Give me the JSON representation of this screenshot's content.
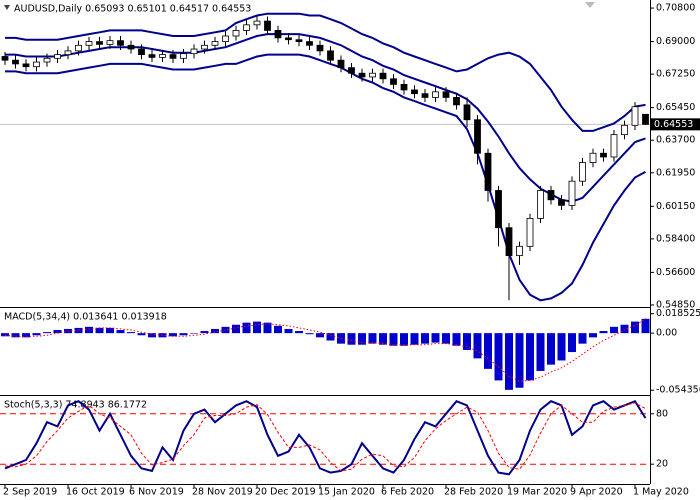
{
  "chart_data": [
    {
      "type": "candlestick",
      "title": "AUDUSD,Daily 0.65093 0.65101 0.64517 0.64553",
      "categories": [
        "2 Sep 2019",
        null,
        null,
        null,
        null,
        null,
        "16 Oct 2019",
        null,
        null,
        null,
        null,
        null,
        "6 Nov 2019",
        null,
        null,
        null,
        null,
        null,
        "28 Nov 2019",
        null,
        null,
        null,
        null,
        null,
        "20 Dec 2019",
        null,
        null,
        null,
        null,
        null,
        "15 Jan 2020",
        null,
        null,
        null,
        null,
        null,
        "6 Feb 2020",
        null,
        null,
        null,
        null,
        null,
        "28 Feb 2020",
        null,
        null,
        null,
        null,
        null,
        "19 Mar 2020",
        null,
        null,
        null,
        null,
        null,
        "9 Apr 2020",
        null,
        null,
        null,
        null,
        null,
        "1 May 2020",
        null
      ],
      "open": [
        0.682,
        0.68,
        0.678,
        0.6765,
        0.679,
        0.681,
        0.683,
        0.685,
        0.688,
        0.69,
        0.6885,
        0.6905,
        0.688,
        0.686,
        0.683,
        0.6815,
        0.683,
        0.681,
        0.6835,
        0.686,
        0.688,
        0.69,
        0.693,
        0.696,
        0.699,
        0.701,
        0.696,
        0.692,
        0.691,
        0.69,
        0.688,
        0.685,
        0.68,
        0.676,
        0.673,
        0.671,
        0.673,
        0.67,
        0.667,
        0.664,
        0.662,
        0.66,
        0.663,
        0.66,
        0.656,
        0.648,
        0.63,
        0.61,
        0.59,
        0.575,
        0.58,
        0.595,
        0.61,
        0.605,
        0.602,
        0.615,
        0.625,
        0.63,
        0.628,
        0.64,
        0.645,
        0.65093
      ],
      "high": [
        0.6845,
        0.6825,
        0.6805,
        0.6815,
        0.6835,
        0.6855,
        0.6875,
        0.6905,
        0.6925,
        0.6925,
        0.693,
        0.693,
        0.6905,
        0.6885,
        0.6855,
        0.6855,
        0.6855,
        0.686,
        0.6885,
        0.6905,
        0.6925,
        0.6955,
        0.6985,
        0.7015,
        0.7035,
        0.7035,
        0.6985,
        0.6945,
        0.6935,
        0.6925,
        0.6905,
        0.6875,
        0.6825,
        0.6785,
        0.6755,
        0.6755,
        0.6755,
        0.6725,
        0.6695,
        0.6665,
        0.6645,
        0.6655,
        0.6655,
        0.6625,
        0.66,
        0.6505,
        0.6325,
        0.6125,
        0.5925,
        0.5825,
        0.5975,
        0.6125,
        0.6125,
        0.6075,
        0.6175,
        0.6275,
        0.6325,
        0.6325,
        0.6425,
        0.6475,
        0.6575,
        0.65101
      ],
      "low": [
        0.6775,
        0.6755,
        0.674,
        0.674,
        0.6765,
        0.6785,
        0.6805,
        0.6825,
        0.6855,
        0.686,
        0.686,
        0.6855,
        0.6835,
        0.6805,
        0.679,
        0.679,
        0.6785,
        0.6785,
        0.681,
        0.6835,
        0.6855,
        0.6875,
        0.6905,
        0.6935,
        0.6965,
        0.6935,
        0.6895,
        0.6885,
        0.6875,
        0.6855,
        0.6825,
        0.6775,
        0.6735,
        0.6705,
        0.6685,
        0.6685,
        0.6675,
        0.6645,
        0.6615,
        0.6595,
        0.6575,
        0.6575,
        0.6575,
        0.6535,
        0.644,
        0.624,
        0.604,
        0.58,
        0.551,
        0.57,
        0.5775,
        0.5925,
        0.6025,
        0.5995,
        0.5995,
        0.6125,
        0.6225,
        0.6255,
        0.6255,
        0.6375,
        0.6425,
        0.64517
      ],
      "close": [
        0.68,
        0.678,
        0.6765,
        0.679,
        0.681,
        0.683,
        0.685,
        0.688,
        0.69,
        0.6885,
        0.6905,
        0.688,
        0.686,
        0.683,
        0.6815,
        0.683,
        0.681,
        0.6835,
        0.686,
        0.688,
        0.69,
        0.693,
        0.696,
        0.699,
        0.701,
        0.696,
        0.692,
        0.691,
        0.69,
        0.688,
        0.685,
        0.68,
        0.676,
        0.673,
        0.671,
        0.673,
        0.67,
        0.667,
        0.664,
        0.662,
        0.66,
        0.663,
        0.66,
        0.656,
        0.648,
        0.63,
        0.61,
        0.59,
        0.575,
        0.58,
        0.595,
        0.61,
        0.605,
        0.602,
        0.615,
        0.625,
        0.63,
        0.628,
        0.64,
        0.645,
        0.655,
        0.64553
      ],
      "series": [
        {
          "color": "#00008b",
          "values": [
            0.692,
            0.692,
            0.691,
            0.691,
            0.691,
            0.691,
            0.692,
            0.693,
            0.694,
            0.695,
            0.696,
            0.696,
            0.696,
            0.696,
            0.695,
            0.694,
            0.693,
            0.693,
            0.693,
            0.694,
            0.695,
            0.696,
            0.7,
            0.702,
            0.704,
            0.705,
            0.705,
            0.705,
            0.705,
            0.704,
            0.704,
            0.702,
            0.7,
            0.697,
            0.694,
            0.692,
            0.689,
            0.687,
            0.684,
            0.682,
            0.68,
            0.678,
            0.676,
            0.674,
            0.675,
            0.678,
            0.681,
            0.683,
            0.684,
            0.682,
            0.678,
            0.671,
            0.664,
            0.655,
            0.648,
            0.642,
            0.642,
            0.644,
            0.646,
            0.65,
            0.655,
            0.656
          ]
        },
        {
          "color": "#00008b",
          "values": [
            0.683,
            0.683,
            0.682,
            0.682,
            0.682,
            0.682,
            0.683,
            0.684,
            0.685,
            0.686,
            0.687,
            0.687,
            0.687,
            0.687,
            0.686,
            0.685,
            0.684,
            0.684,
            0.684,
            0.685,
            0.686,
            0.687,
            0.689,
            0.691,
            0.693,
            0.694,
            0.694,
            0.694,
            0.694,
            0.693,
            0.692,
            0.69,
            0.688,
            0.685,
            0.682,
            0.68,
            0.677,
            0.675,
            0.672,
            0.67,
            0.668,
            0.666,
            0.664,
            0.662,
            0.659,
            0.654,
            0.647,
            0.639,
            0.63,
            0.622,
            0.616,
            0.611,
            0.608,
            0.605,
            0.604,
            0.606,
            0.612,
            0.618,
            0.624,
            0.63,
            0.636,
            0.638
          ]
        },
        {
          "color": "#00008b",
          "values": [
            0.674,
            0.674,
            0.673,
            0.673,
            0.673,
            0.673,
            0.674,
            0.675,
            0.676,
            0.677,
            0.678,
            0.678,
            0.678,
            0.678,
            0.677,
            0.676,
            0.675,
            0.675,
            0.675,
            0.676,
            0.677,
            0.678,
            0.678,
            0.68,
            0.682,
            0.683,
            0.683,
            0.683,
            0.683,
            0.682,
            0.68,
            0.678,
            0.676,
            0.673,
            0.67,
            0.668,
            0.665,
            0.663,
            0.66,
            0.658,
            0.656,
            0.654,
            0.652,
            0.65,
            0.643,
            0.63,
            0.613,
            0.595,
            0.576,
            0.562,
            0.554,
            0.551,
            0.552,
            0.555,
            0.56,
            0.57,
            0.582,
            0.592,
            0.602,
            0.61,
            0.617,
            0.62
          ]
        }
      ],
      "last_price": {
        "value": 0.64553,
        "label": "0.64553"
      },
      "ylim": [
        0.5474,
        0.7118
      ],
      "yticks": [
        {
          "value": 0.708,
          "label": "0.70800"
        },
        {
          "value": 0.69,
          "label": "0.69000"
        },
        {
          "value": 0.6725,
          "label": "0.67250"
        },
        {
          "value": 0.6545,
          "label": "0.65450"
        },
        {
          "value": 0.637,
          "label": "0.63700"
        },
        {
          "value": 0.6195,
          "label": "0.61950"
        },
        {
          "value": 0.6015,
          "label": "0.60150"
        },
        {
          "value": 0.584,
          "label": "0.58400"
        },
        {
          "value": 0.566,
          "label": "0.56600"
        },
        {
          "value": 0.5485,
          "label": "0.54850"
        }
      ]
    },
    {
      "type": "macd",
      "title": "MACD(5,34,4) 0.013641 0.013918",
      "series": [
        {
          "color": "#0000cd",
          "style": "bar",
          "values": [
            -0.003,
            -0.004,
            -0.004,
            -0.002,
            0.001,
            0.003,
            0.004,
            0.005,
            0.006,
            0.005,
            0.005,
            0.003,
            0.001,
            -0.002,
            -0.004,
            -0.004,
            -0.003,
            -0.002,
            0,
            0.002,
            0.004,
            0.006,
            0.008,
            0.01,
            0.011,
            0.01,
            0.007,
            0.004,
            0.002,
            -0.001,
            -0.004,
            -0.007,
            -0.01,
            -0.011,
            -0.011,
            -0.01,
            -0.011,
            -0.012,
            -0.012,
            -0.011,
            -0.01,
            -0.009,
            -0.01,
            -0.012,
            -0.016,
            -0.024,
            -0.034,
            -0.045,
            -0.054,
            -0.052,
            -0.045,
            -0.036,
            -0.03,
            -0.026,
            -0.018,
            -0.01,
            -0.004,
            0.002,
            0.006,
            0.008,
            0.011,
            0.013641
          ]
        },
        {
          "color": "#ff0000",
          "style": "dotted",
          "values": [
            -0.002,
            -0.003,
            -0.003,
            -0.003,
            -0.002,
            0,
            0.002,
            0.003,
            0.004,
            0.005,
            0.005,
            0.004,
            0.003,
            0.001,
            -0.001,
            -0.002,
            -0.003,
            -0.003,
            -0.002,
            -0.001,
            0.001,
            0.003,
            0.005,
            0.007,
            0.008,
            0.009,
            0.008,
            0.007,
            0.005,
            0.003,
            0.001,
            -0.002,
            -0.005,
            -0.007,
            -0.009,
            -0.009,
            -0.01,
            -0.011,
            -0.011,
            -0.011,
            -0.011,
            -0.01,
            -0.01,
            -0.011,
            -0.013,
            -0.017,
            -0.024,
            -0.032,
            -0.041,
            -0.046,
            -0.045,
            -0.042,
            -0.037,
            -0.033,
            -0.027,
            -0.02,
            -0.013,
            -0.007,
            -0.002,
            0.003,
            0.007,
            0.013918
          ]
        }
      ],
      "ylim": [
        -0.057,
        0.023
      ],
      "yticks": [
        0.018525,
        {
          "value": 0,
          "label": "0.00"
        },
        -0.054356
      ]
    },
    {
      "type": "stochastic",
      "title": "Stoch(5,3,3) 74.8943 86.1772",
      "series": [
        {
          "color": "#00008b",
          "style": "solid",
          "values": [
            15,
            20,
            25,
            45,
            70,
            65,
            90,
            95,
            85,
            60,
            80,
            55,
            30,
            15,
            12,
            40,
            25,
            60,
            80,
            85,
            70,
            80,
            90,
            95,
            88,
            55,
            30,
            35,
            55,
            40,
            15,
            10,
            12,
            20,
            45,
            30,
            15,
            10,
            25,
            50,
            70,
            65,
            80,
            95,
            90,
            60,
            30,
            10,
            8,
            25,
            60,
            85,
            95,
            90,
            55,
            65,
            90,
            95,
            85,
            90,
            95,
            74.8943
          ]
        },
        {
          "color": "#ff0000",
          "style": "dashed",
          "values": [
            18,
            17,
            20,
            30,
            47,
            60,
            75,
            83,
            90,
            80,
            75,
            65,
            55,
            33,
            19,
            22,
            26,
            42,
            55,
            75,
            78,
            78,
            80,
            88,
            91,
            79,
            58,
            40,
            40,
            43,
            37,
            22,
            12,
            14,
            26,
            32,
            30,
            18,
            17,
            28,
            48,
            62,
            72,
            80,
            88,
            82,
            60,
            33,
            16,
            14,
            31,
            57,
            80,
            90,
            80,
            70,
            70,
            83,
            88,
            90,
            93,
            86.1772
          ]
        }
      ],
      "level_color": "#ff0000",
      "ylim": [
        0,
        100
      ],
      "yticks": [
        80,
        20
      ]
    }
  ]
}
